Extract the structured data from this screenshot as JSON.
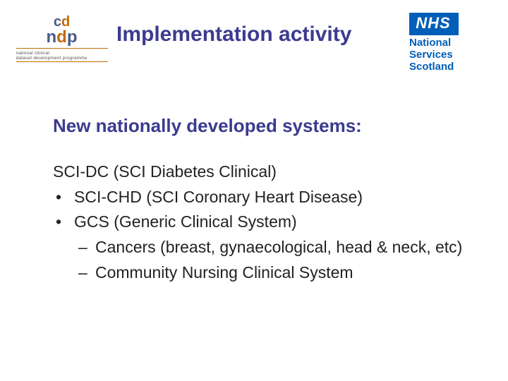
{
  "colors": {
    "heading": "#3b3b8f",
    "body": "#222222",
    "nhs_blue": "#005eb8",
    "ndp_orange": "#c46a00",
    "ndp_navy": "#4a5a8a",
    "background": "#ffffff"
  },
  "fonts": {
    "title_size": 30,
    "subhead_size": 26,
    "body_size": 23,
    "family": "Arial"
  },
  "logo_left": {
    "cd_c": "c",
    "cd_d": "d",
    "ndp_n": "n",
    "ndp_d": "d",
    "ndp_p": "p",
    "tagline1": "national clinical",
    "tagline2": "dataset development programme"
  },
  "logo_right": {
    "nhs": "NHS",
    "line1": "National",
    "line2": "Services",
    "line3": "Scotland"
  },
  "title": "Implementation activity",
  "subhead": "New nationally developed systems:",
  "list": {
    "line1": "SCI-DC (SCI Diabetes Clinical)",
    "bullet1": "SCI-CHD (SCI Coronary Heart Disease)",
    "bullet2": "GCS (Generic Clinical System)",
    "dash1": "Cancers (breast, gynaecological, head & neck, etc)",
    "dash2": "Community Nursing Clinical System"
  }
}
